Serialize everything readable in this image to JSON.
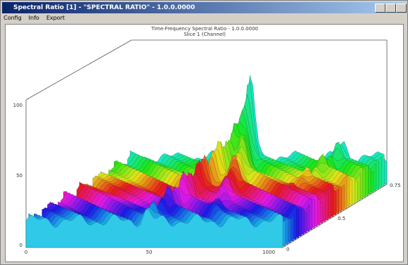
{
  "window": {
    "title": "Spectral Ratio [1] - \"SPECTRAL RATIO\" - 1.0.0.0000",
    "menu": [
      "Config",
      "Info",
      "Export"
    ]
  },
  "plot": {
    "title": "Time-Frequency Spectral Ratio - 1.0.0.0000",
    "subtitle": "Slice 1 (Channel)",
    "y_tick_labels": [
      "100",
      "50",
      "0"
    ],
    "x_tick_labels": [
      "0",
      "50",
      "1000"
    ],
    "z_tick_labels": [
      "0",
      "0.5",
      "0.75"
    ]
  }
}
